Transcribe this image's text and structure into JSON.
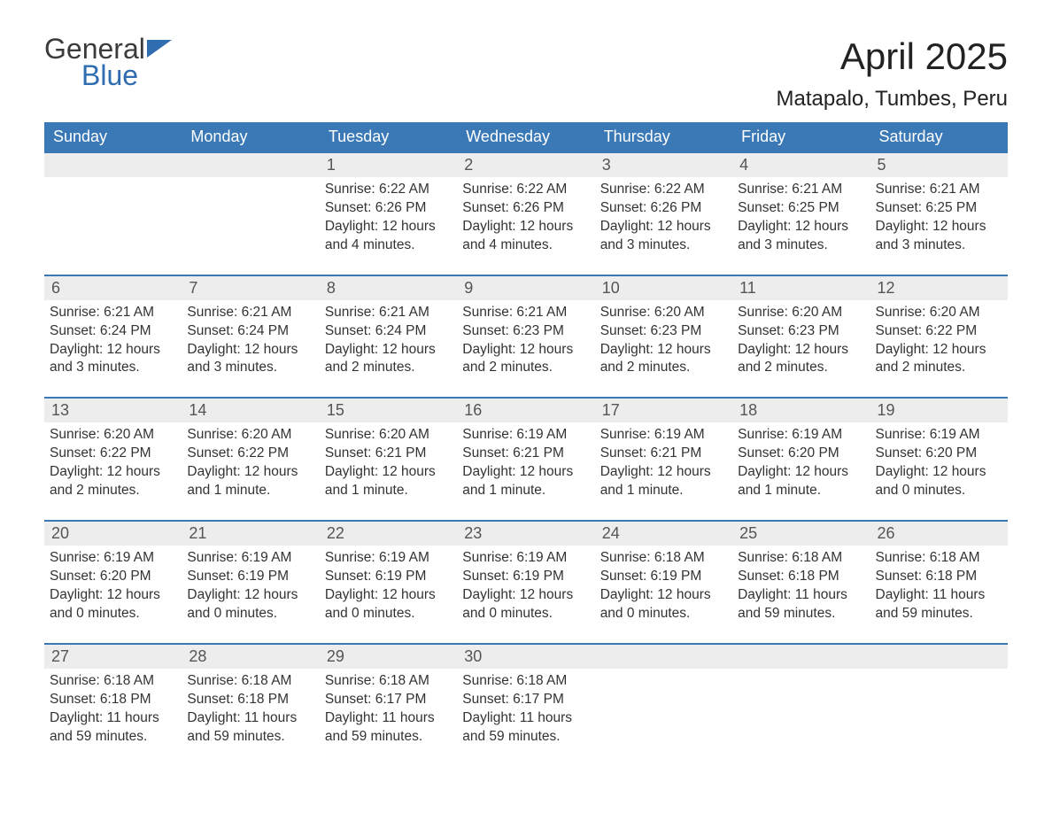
{
  "logo": {
    "line1": "General",
    "line2": "Blue"
  },
  "title": "April 2025",
  "location": "Matapalo, Tumbes, Peru",
  "colors": {
    "header_bg": "#3a78b6",
    "header_text": "#ffffff",
    "daynum_bg": "#ededed",
    "row_border": "#3a78b6",
    "body_text": "#333333",
    "logo_blue": "#2f6db0"
  },
  "weekdays": [
    "Sunday",
    "Monday",
    "Tuesday",
    "Wednesday",
    "Thursday",
    "Friday",
    "Saturday"
  ],
  "weeks": [
    [
      null,
      null,
      {
        "n": "1",
        "sr": "6:22 AM",
        "ss": "6:26 PM",
        "dl": "12 hours and 4 minutes."
      },
      {
        "n": "2",
        "sr": "6:22 AM",
        "ss": "6:26 PM",
        "dl": "12 hours and 4 minutes."
      },
      {
        "n": "3",
        "sr": "6:22 AM",
        "ss": "6:26 PM",
        "dl": "12 hours and 3 minutes."
      },
      {
        "n": "4",
        "sr": "6:21 AM",
        "ss": "6:25 PM",
        "dl": "12 hours and 3 minutes."
      },
      {
        "n": "5",
        "sr": "6:21 AM",
        "ss": "6:25 PM",
        "dl": "12 hours and 3 minutes."
      }
    ],
    [
      {
        "n": "6",
        "sr": "6:21 AM",
        "ss": "6:24 PM",
        "dl": "12 hours and 3 minutes."
      },
      {
        "n": "7",
        "sr": "6:21 AM",
        "ss": "6:24 PM",
        "dl": "12 hours and 3 minutes."
      },
      {
        "n": "8",
        "sr": "6:21 AM",
        "ss": "6:24 PM",
        "dl": "12 hours and 2 minutes."
      },
      {
        "n": "9",
        "sr": "6:21 AM",
        "ss": "6:23 PM",
        "dl": "12 hours and 2 minutes."
      },
      {
        "n": "10",
        "sr": "6:20 AM",
        "ss": "6:23 PM",
        "dl": "12 hours and 2 minutes."
      },
      {
        "n": "11",
        "sr": "6:20 AM",
        "ss": "6:23 PM",
        "dl": "12 hours and 2 minutes."
      },
      {
        "n": "12",
        "sr": "6:20 AM",
        "ss": "6:22 PM",
        "dl": "12 hours and 2 minutes."
      }
    ],
    [
      {
        "n": "13",
        "sr": "6:20 AM",
        "ss": "6:22 PM",
        "dl": "12 hours and 2 minutes."
      },
      {
        "n": "14",
        "sr": "6:20 AM",
        "ss": "6:22 PM",
        "dl": "12 hours and 1 minute."
      },
      {
        "n": "15",
        "sr": "6:20 AM",
        "ss": "6:21 PM",
        "dl": "12 hours and 1 minute."
      },
      {
        "n": "16",
        "sr": "6:19 AM",
        "ss": "6:21 PM",
        "dl": "12 hours and 1 minute."
      },
      {
        "n": "17",
        "sr": "6:19 AM",
        "ss": "6:21 PM",
        "dl": "12 hours and 1 minute."
      },
      {
        "n": "18",
        "sr": "6:19 AM",
        "ss": "6:20 PM",
        "dl": "12 hours and 1 minute."
      },
      {
        "n": "19",
        "sr": "6:19 AM",
        "ss": "6:20 PM",
        "dl": "12 hours and 0 minutes."
      }
    ],
    [
      {
        "n": "20",
        "sr": "6:19 AM",
        "ss": "6:20 PM",
        "dl": "12 hours and 0 minutes."
      },
      {
        "n": "21",
        "sr": "6:19 AM",
        "ss": "6:19 PM",
        "dl": "12 hours and 0 minutes."
      },
      {
        "n": "22",
        "sr": "6:19 AM",
        "ss": "6:19 PM",
        "dl": "12 hours and 0 minutes."
      },
      {
        "n": "23",
        "sr": "6:19 AM",
        "ss": "6:19 PM",
        "dl": "12 hours and 0 minutes."
      },
      {
        "n": "24",
        "sr": "6:18 AM",
        "ss": "6:19 PM",
        "dl": "12 hours and 0 minutes."
      },
      {
        "n": "25",
        "sr": "6:18 AM",
        "ss": "6:18 PM",
        "dl": "11 hours and 59 minutes."
      },
      {
        "n": "26",
        "sr": "6:18 AM",
        "ss": "6:18 PM",
        "dl": "11 hours and 59 minutes."
      }
    ],
    [
      {
        "n": "27",
        "sr": "6:18 AM",
        "ss": "6:18 PM",
        "dl": "11 hours and 59 minutes."
      },
      {
        "n": "28",
        "sr": "6:18 AM",
        "ss": "6:18 PM",
        "dl": "11 hours and 59 minutes."
      },
      {
        "n": "29",
        "sr": "6:18 AM",
        "ss": "6:17 PM",
        "dl": "11 hours and 59 minutes."
      },
      {
        "n": "30",
        "sr": "6:18 AM",
        "ss": "6:17 PM",
        "dl": "11 hours and 59 minutes."
      },
      null,
      null,
      null
    ]
  ],
  "labels": {
    "sunrise": "Sunrise: ",
    "sunset": "Sunset: ",
    "daylight": "Daylight: "
  }
}
